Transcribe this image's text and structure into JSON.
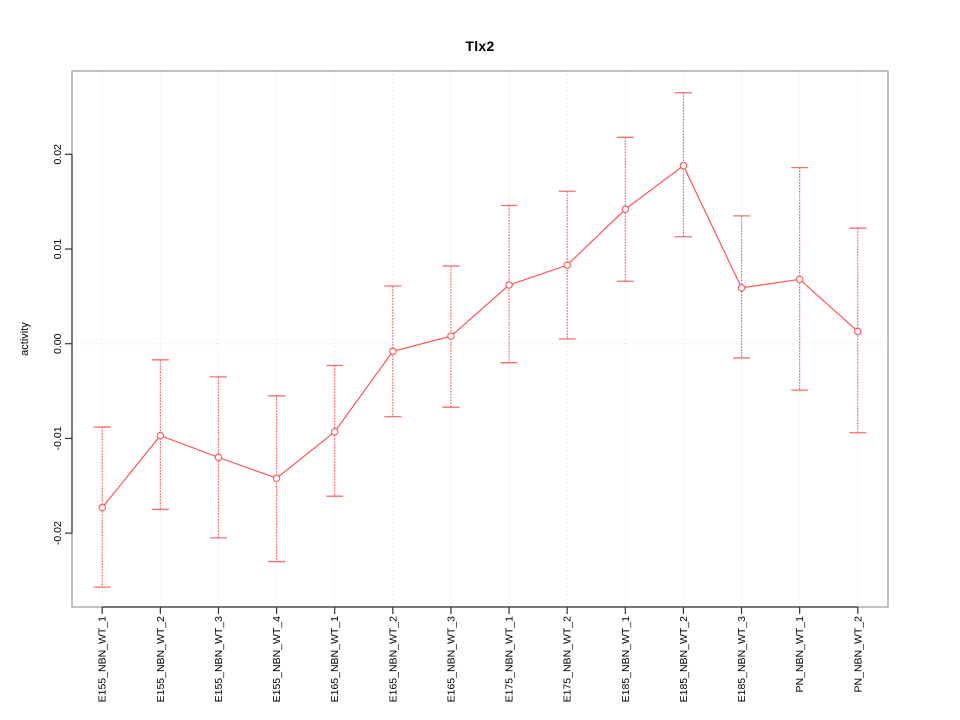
{
  "chart_data": {
    "type": "line",
    "title": "Tlx2",
    "xlabel": "",
    "ylabel": "activity",
    "categories": [
      "E155_NBN_WT_1",
      "E155_NBN_WT_2",
      "E155_NBN_WT_3",
      "E155_NBN_WT_4",
      "E165_NBN_WT_1",
      "E165_NBN_WT_2",
      "E165_NBN_WT_3",
      "E175_NBN_WT_1",
      "E175_NBN_WT_2",
      "E185_NBN_WT_1",
      "E185_NBN_WT_2",
      "E185_NBN_WT_3",
      "PN_NBN_WT_1",
      "PN_NBN_WT_2"
    ],
    "series": [
      {
        "name": "activity",
        "values": [
          -0.0173,
          -0.0097,
          -0.012,
          -0.0142,
          -0.0093,
          -0.0008,
          0.0008,
          0.0062,
          0.0083,
          0.0142,
          0.0188,
          0.0059,
          0.0068,
          0.0013
        ],
        "error_high": [
          -0.0088,
          -0.0017,
          -0.0035,
          -0.0055,
          -0.0023,
          0.0061,
          0.0082,
          0.0146,
          0.0161,
          0.0218,
          0.0265,
          0.0135,
          0.0186,
          0.0122
        ],
        "error_low": [
          -0.0257,
          -0.0175,
          -0.0205,
          -0.023,
          -0.0161,
          -0.0077,
          -0.0067,
          -0.002,
          0.0005,
          0.0066,
          0.0113,
          -0.0015,
          -0.0049,
          -0.0094
        ]
      }
    ],
    "ylim": [
      -0.0278,
      0.0288
    ],
    "yticks": [
      0.02,
      0.01,
      0.0,
      -0.01,
      -0.02
    ],
    "ytick_labels": [
      "0.02",
      "0.01",
      "0.00",
      "-0.01",
      "-0.02"
    ],
    "grid": {
      "vertical_at_each_category": true,
      "horizontal_at": [
        0
      ],
      "style": "dotted"
    },
    "legend": null,
    "marker": "open-circle",
    "colors": {
      "series": "#FF5454",
      "grid": "#DEDEDE",
      "box": "#9A9A9A",
      "axis": "#333333",
      "text": "#000000"
    }
  }
}
